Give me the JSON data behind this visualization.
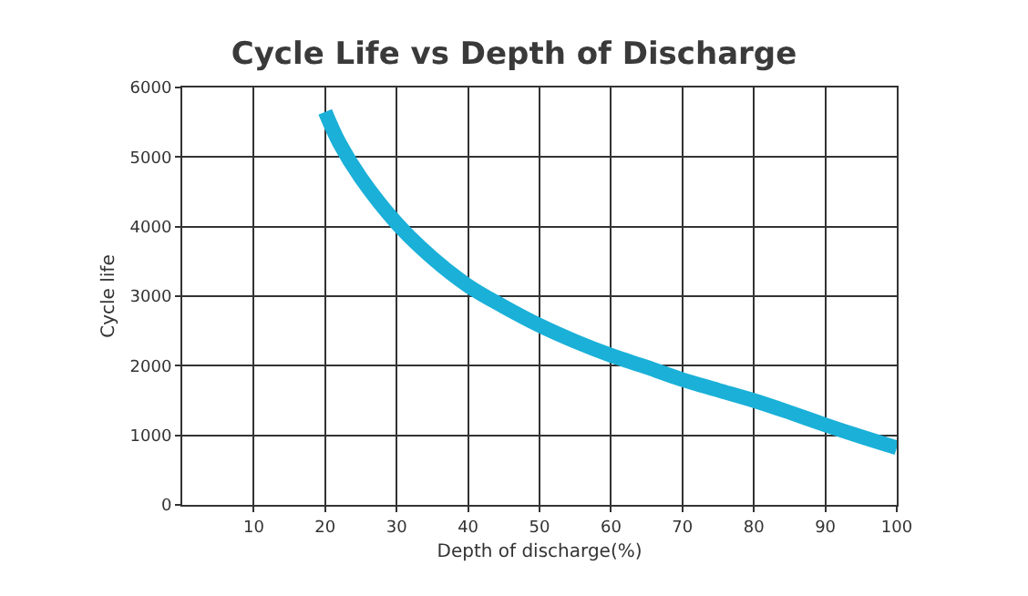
{
  "chart_data": {
    "type": "line",
    "title": "Cycle Life vs Depth of Discharge",
    "xlabel": "Depth of discharge(%)",
    "ylabel": "Cycle life",
    "x": [
      20,
      22,
      25,
      30,
      35,
      40,
      45,
      50,
      55,
      60,
      65,
      70,
      75,
      80,
      85,
      90,
      95,
      100
    ],
    "series": [
      {
        "color": "#1ab0d8",
        "values": [
          5650,
          5200,
          4700,
          4050,
          3550,
          3150,
          2850,
          2580,
          2350,
          2150,
          1980,
          1800,
          1650,
          1500,
          1330,
          1150,
          980,
          820
        ]
      }
    ],
    "xlim": [
      0,
      100
    ],
    "xticks": [
      10,
      20,
      30,
      40,
      50,
      60,
      70,
      80,
      90,
      100
    ],
    "ylim": [
      0,
      6000
    ],
    "yticks": [
      0,
      1000,
      2000,
      3000,
      4000,
      5000,
      6000
    ],
    "grid": true,
    "marker": "none",
    "line_style": "solid",
    "legend": false
  }
}
